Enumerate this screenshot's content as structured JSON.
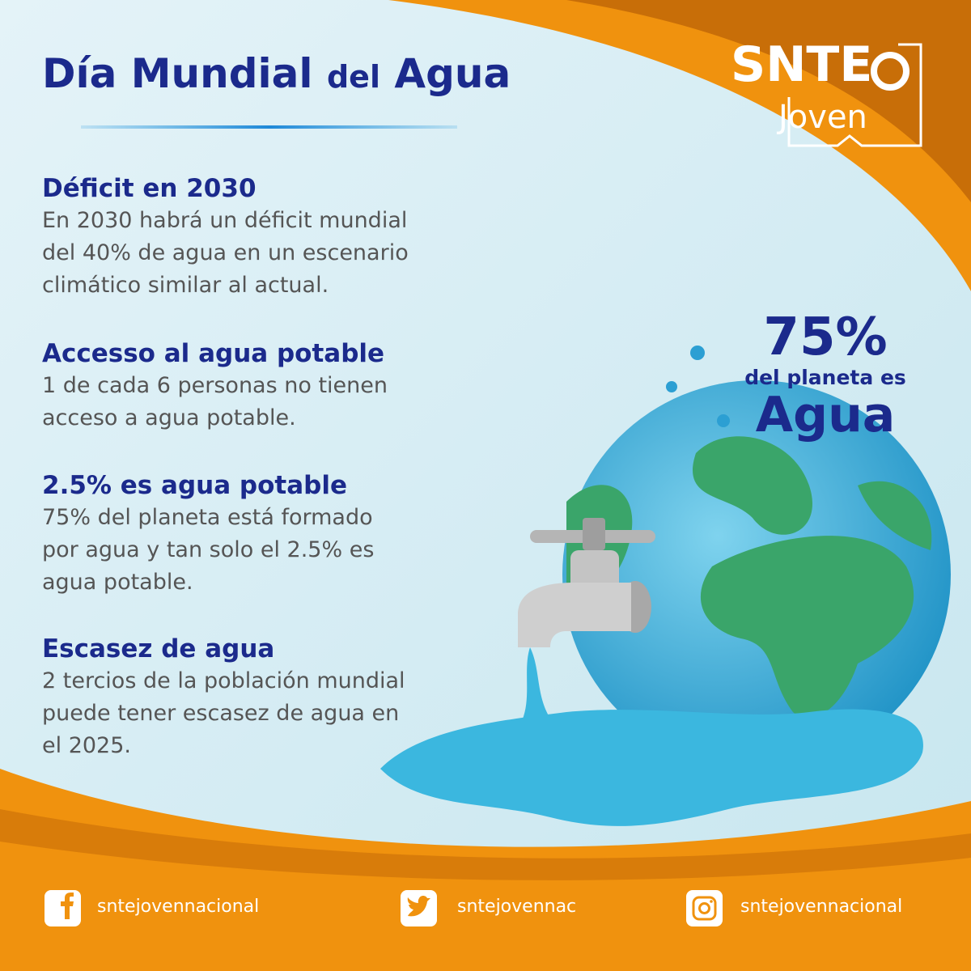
{
  "header": {
    "title": [
      "Día Mundial",
      "del",
      "Agua"
    ]
  },
  "logo": {
    "brand": "SNTE",
    "sub": "Joven"
  },
  "sections": [
    {
      "heading": "Déficit en 2030",
      "lines": [
        "En 2030 habrá un déficit mundial",
        "del 40% de agua en un escenario",
        "climático similar al actual."
      ]
    },
    {
      "heading": "Accesso al agua potable",
      "lines": [
        "1 de cada 6 personas no tienen",
        "acceso a agua potable."
      ]
    },
    {
      "heading": "2.5% es agua potable",
      "lines": [
        "75% del planeta está formado",
        "por agua y tan solo el 2.5% es",
        "agua potable."
      ]
    },
    {
      "heading": "Escasez de agua",
      "lines": [
        "2 tercios de la población mundial",
        "puede tener escasez de agua en",
        "el 2025."
      ]
    }
  ],
  "callout": {
    "big": "75%",
    "middle": "del planeta es",
    "bottom": "Agua"
  },
  "social": [
    {
      "network": "facebook",
      "handle": "sntejovennacional"
    },
    {
      "network": "twitter",
      "handle": "sntejovennac"
    },
    {
      "network": "instagram",
      "handle": "sntejovennacional"
    }
  ]
}
